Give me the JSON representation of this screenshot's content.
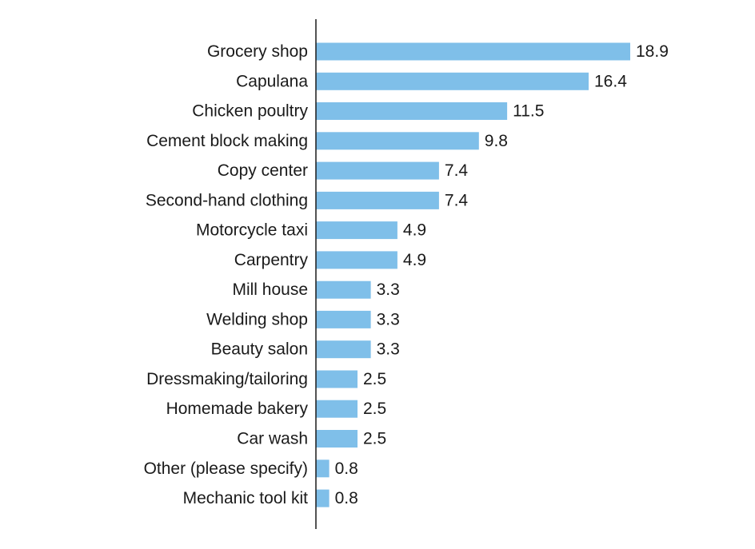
{
  "chart_data": {
    "type": "bar",
    "orientation": "horizontal",
    "title": "",
    "xlabel": "",
    "ylabel": "",
    "categories": [
      "Grocery shop",
      "Capulana",
      "Chicken poultry",
      "Cement block making",
      "Copy center",
      "Second-hand clothing",
      "Motorcycle taxi",
      "Carpentry",
      "Mill house",
      "Welding shop",
      "Beauty salon",
      "Dressmaking/tailoring",
      "Homemade bakery",
      "Car wash",
      "Other (please specify)",
      "Mechanic tool kit"
    ],
    "values": [
      18.9,
      16.4,
      11.5,
      9.8,
      7.4,
      7.4,
      4.9,
      4.9,
      3.3,
      3.3,
      3.3,
      2.5,
      2.5,
      2.5,
      0.8,
      0.8
    ],
    "value_labels": [
      "18.9",
      "16.4",
      "11.5",
      "9.8",
      "7.4",
      "7.4",
      "4.9",
      "4.9",
      "3.3",
      "3.3",
      "3.3",
      "2.5",
      "2.5",
      "2.5",
      "0.8",
      "0.8"
    ],
    "xlim": [
      0,
      18.9
    ],
    "grid": false,
    "legend": "none",
    "bar_color": "#7fbfe9",
    "axis_color": "#1a1a1a"
  }
}
